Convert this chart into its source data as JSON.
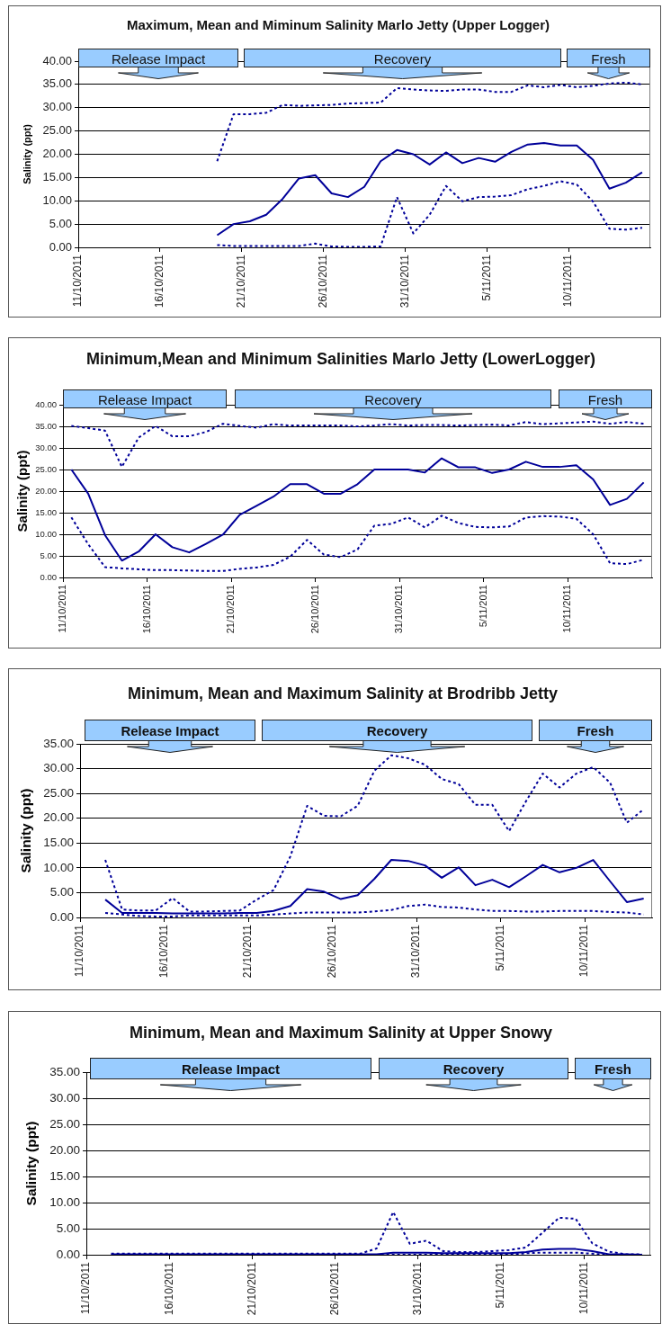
{
  "chart_data": [
    {
      "type": "line",
      "title": "Maximum, Mean and Miminum Salinity Marlo Jetty (Upper Logger)",
      "ylabel": "Salinity (ppt)",
      "x": [
        "2011-10-19T12:00",
        "2011-10-20T12:00",
        "2011-10-21T12:00",
        "2011-10-22T12:00",
        "2011-10-23T12:00",
        "2011-10-24T12:00",
        "2011-10-25T12:00",
        "2011-10-26T12:00",
        "2011-10-27T12:00",
        "2011-10-28T12:00",
        "2011-10-29T12:00",
        "2011-10-30T12:00",
        "2011-10-31T12:00",
        "2011-11-01T12:00",
        "2011-11-02T12:00",
        "2011-11-03T12:00",
        "2011-11-04T12:00",
        "2011-11-05T12:00",
        "2011-11-06T12:00",
        "2011-11-07T12:00",
        "2011-11-08T12:00",
        "2011-11-09T12:00",
        "2011-11-10T12:00",
        "2011-11-11T12:00",
        "2011-11-12T12:00",
        "2011-11-13T12:00",
        "2011-11-14T12:00"
      ],
      "series": [
        {
          "color": "#000099",
          "line_style": "dotted",
          "values": [
            18.5,
            28.6,
            28.6,
            28.9,
            30.6,
            30.4,
            30.5,
            30.6,
            30.9,
            31.0,
            31.1,
            34.2,
            33.9,
            33.7,
            33.6,
            33.9,
            33.9,
            33.4,
            33.4,
            34.8,
            34.4,
            34.9,
            34.4,
            34.7,
            35.2,
            35.4,
            35.0
          ]
        },
        {
          "color": "#000099",
          "line_style": "solid",
          "values": [
            2.6,
            5.0,
            5.6,
            7.0,
            10.4,
            14.8,
            15.5,
            11.6,
            10.8,
            13.0,
            18.5,
            20.9,
            20.0,
            17.8,
            20.4,
            18.1,
            19.2,
            18.4,
            20.5,
            22.1,
            22.4,
            21.9,
            21.9,
            18.8,
            12.6,
            13.9,
            16.1
          ]
        },
        {
          "color": "#000099",
          "line_style": "dotted",
          "values": [
            0.5,
            0.3,
            0.3,
            0.3,
            0.3,
            0.3,
            0.8,
            0.2,
            0.1,
            0.1,
            0.2,
            10.8,
            3.0,
            7.0,
            13.2,
            9.9,
            10.8,
            10.9,
            11.2,
            12.5,
            13.2,
            14.2,
            13.5,
            9.8,
            4.0,
            3.8,
            4.2
          ]
        }
      ],
      "xlim": [
        "2011-10-11",
        "2011-11-15"
      ],
      "xticks": [
        {
          "value": "2011-10-11",
          "label": "11/10/2011"
        },
        {
          "value": "2011-10-16",
          "label": "16/10/2011"
        },
        {
          "value": "2011-10-21",
          "label": "21/10/2011"
        },
        {
          "value": "2011-10-26",
          "label": "26/10/2011"
        },
        {
          "value": "2011-10-31",
          "label": "31/10/2011"
        },
        {
          "value": "2011-11-05",
          "label": "5/11/2011"
        },
        {
          "value": "2011-11-10",
          "label": "10/11/2011"
        }
      ],
      "ylim": [
        0,
        40
      ],
      "yticks": [
        {
          "value": 0,
          "label": "0.00"
        },
        {
          "value": 5,
          "label": "5.00"
        },
        {
          "value": 10,
          "label": "10.00"
        },
        {
          "value": 15,
          "label": "15.00"
        },
        {
          "value": 20,
          "label": "20.00"
        },
        {
          "value": 25,
          "label": "25.00"
        },
        {
          "value": 30,
          "label": "30.00"
        },
        {
          "value": 35,
          "label": "35.00"
        },
        {
          "value": 40,
          "label": "40.00"
        }
      ],
      "grid": "y",
      "annotations": [
        "Release Impact",
        "Recovery",
        "Fresh"
      ]
    },
    {
      "type": "line",
      "title": "Minimum,Mean and Minimum Salinities Marlo Jetty (LowerLogger)",
      "ylabel": "Salinity (ppt)",
      "x": [
        "2011-10-11T12:00",
        "2011-10-12T12:00",
        "2011-10-13T12:00",
        "2011-10-14T12:00",
        "2011-10-15T12:00",
        "2011-10-16T12:00",
        "2011-10-17T12:00",
        "2011-10-18T12:00",
        "2011-10-19T12:00",
        "2011-10-20T12:00",
        "2011-10-21T12:00",
        "2011-10-22T12:00",
        "2011-10-23T12:00",
        "2011-10-24T12:00",
        "2011-10-25T12:00",
        "2011-10-26T12:00",
        "2011-10-27T12:00",
        "2011-10-28T12:00",
        "2011-10-29T12:00",
        "2011-10-30T12:00",
        "2011-10-31T12:00",
        "2011-11-01T12:00",
        "2011-11-02T12:00",
        "2011-11-03T12:00",
        "2011-11-04T12:00",
        "2011-11-05T12:00",
        "2011-11-06T12:00",
        "2011-11-07T12:00",
        "2011-11-08T12:00",
        "2011-11-09T12:00",
        "2011-11-10T12:00",
        "2011-11-11T12:00",
        "2011-11-12T12:00",
        "2011-11-13T12:00",
        "2011-11-14T12:00"
      ],
      "series": [
        {
          "color": "#000099",
          "line_style": "dotted",
          "values": [
            35.1,
            34.6,
            34.0,
            25.6,
            32.4,
            35.1,
            32.7,
            32.7,
            33.7,
            35.6,
            35.1,
            34.7,
            35.5,
            35.2,
            35.2,
            35.2,
            35.2,
            35.0,
            35.2,
            35.5,
            35.2,
            35.3,
            35.3,
            35.2,
            35.3,
            35.4,
            35.2,
            36.0,
            35.5,
            35.7,
            35.9,
            36.1,
            35.6,
            36.0,
            35.6
          ]
        },
        {
          "color": "#000099",
          "line_style": "solid",
          "values": [
            25.0,
            19.4,
            9.8,
            3.9,
            6.0,
            10.0,
            7.0,
            5.8,
            7.8,
            9.9,
            14.5,
            16.6,
            18.7,
            21.6,
            21.6,
            19.4,
            19.4,
            21.6,
            25.0,
            25.0,
            25.0,
            24.3,
            27.6,
            25.5,
            25.5,
            24.2,
            25.0,
            26.8,
            25.6,
            25.6,
            26.0,
            22.7,
            16.8,
            18.2,
            22.0
          ]
        },
        {
          "color": "#000099",
          "line_style": "dotted",
          "values": [
            13.9,
            7.7,
            2.4,
            2.1,
            1.9,
            1.7,
            1.7,
            1.6,
            1.5,
            1.5,
            2.0,
            2.3,
            2.9,
            4.8,
            8.7,
            5.3,
            4.7,
            6.5,
            12.0,
            12.4,
            13.9,
            11.6,
            14.3,
            12.6,
            11.7,
            11.6,
            11.8,
            13.9,
            14.2,
            14.1,
            13.6,
            10.0,
            3.3,
            3.1,
            4.1
          ]
        }
      ],
      "xlim": [
        "2011-10-11",
        "2011-11-15"
      ],
      "xticks": [
        {
          "value": "2011-10-11",
          "label": "11/10/2011"
        },
        {
          "value": "2011-10-16",
          "label": "16/10/2011"
        },
        {
          "value": "2011-10-21",
          "label": "21/10/2011"
        },
        {
          "value": "2011-10-26",
          "label": "26/10/2011"
        },
        {
          "value": "2011-10-31",
          "label": "31/10/2011"
        },
        {
          "value": "2011-11-05",
          "label": "5/11/2011"
        },
        {
          "value": "2011-11-10",
          "label": "10/11/2011"
        }
      ],
      "ylim": [
        0,
        40
      ],
      "yticks": [
        {
          "value": 0,
          "label": "0.00"
        },
        {
          "value": 5,
          "label": "5.00"
        },
        {
          "value": 10,
          "label": "10.00"
        },
        {
          "value": 15,
          "label": "15.00"
        },
        {
          "value": 20,
          "label": "20.00"
        },
        {
          "value": 25,
          "label": "25.00"
        },
        {
          "value": 30,
          "label": "30.00"
        },
        {
          "value": 35,
          "label": "35.00"
        },
        {
          "value": 40,
          "label": "40.00"
        }
      ],
      "grid": "y",
      "annotations": [
        "Release Impact",
        "Recovery",
        "Fresh"
      ]
    },
    {
      "type": "line",
      "title": "Minimum, Mean and Maximum Salinity at Brodribb Jetty",
      "ylabel": "Salinity (ppt)",
      "x": [
        "2011-10-12T12:00",
        "2011-10-13T12:00",
        "2011-10-14T12:00",
        "2011-10-15T12:00",
        "2011-10-16T12:00",
        "2011-10-17T12:00",
        "2011-10-18T12:00",
        "2011-10-19T12:00",
        "2011-10-20T12:00",
        "2011-10-21T12:00",
        "2011-10-22T12:00",
        "2011-10-23T12:00",
        "2011-10-24T12:00",
        "2011-10-25T12:00",
        "2011-10-26T12:00",
        "2011-10-27T12:00",
        "2011-10-28T12:00",
        "2011-10-29T12:00",
        "2011-10-30T12:00",
        "2011-10-31T12:00",
        "2011-11-01T12:00",
        "2011-11-02T12:00",
        "2011-11-03T12:00",
        "2011-11-04T12:00",
        "2011-11-05T12:00",
        "2011-11-06T12:00",
        "2011-11-07T12:00",
        "2011-11-08T12:00",
        "2011-11-09T12:00",
        "2011-11-10T12:00",
        "2011-11-11T12:00",
        "2011-11-12T12:00",
        "2011-11-13T12:00"
      ],
      "series": [
        {
          "color": "#000099",
          "line_style": "dotted",
          "values": [
            11.6,
            1.6,
            1.4,
            1.4,
            3.9,
            1.2,
            1.2,
            1.3,
            1.4,
            3.6,
            5.5,
            12.3,
            22.5,
            20.5,
            20.4,
            22.5,
            29.6,
            32.7,
            32.1,
            30.8,
            27.9,
            26.9,
            22.7,
            22.7,
            17.4,
            23.4,
            29.0,
            26.2,
            29.0,
            30.3,
            27.2,
            19.1,
            21.8
          ]
        },
        {
          "color": "#000099",
          "line_style": "solid",
          "values": [
            3.6,
            0.9,
            0.9,
            0.9,
            0.8,
            0.8,
            0.8,
            0.8,
            0.9,
            0.9,
            1.3,
            2.3,
            5.7,
            5.2,
            3.7,
            4.5,
            7.8,
            11.6,
            11.4,
            10.5,
            8.0,
            10.1,
            6.5,
            7.6,
            6.1,
            8.3,
            10.6,
            9.1,
            10.0,
            11.6,
            7.3,
            3.1,
            3.8
          ]
        },
        {
          "color": "#000099",
          "line_style": "dotted",
          "values": [
            0.9,
            0.6,
            0.3,
            0.2,
            0.2,
            0.4,
            0.4,
            0.4,
            0.4,
            0.4,
            0.6,
            0.8,
            1.0,
            1.0,
            1.0,
            1.0,
            1.2,
            1.5,
            2.3,
            2.6,
            2.1,
            2.0,
            1.6,
            1.3,
            1.3,
            1.2,
            1.2,
            1.3,
            1.3,
            1.3,
            1.1,
            1.0,
            0.6
          ]
        }
      ],
      "xlim": [
        "2011-10-11",
        "2011-11-14"
      ],
      "xticks": [
        {
          "value": "2011-10-11",
          "label": "11/10/2011"
        },
        {
          "value": "2011-10-16",
          "label": "16/10/2011"
        },
        {
          "value": "2011-10-21",
          "label": "21/10/2011"
        },
        {
          "value": "2011-10-26",
          "label": "26/10/2011"
        },
        {
          "value": "2011-10-31",
          "label": "31/10/2011"
        },
        {
          "value": "2011-11-05",
          "label": "5/11/2011"
        },
        {
          "value": "2011-11-10",
          "label": "10/11/2011"
        }
      ],
      "ylim": [
        0,
        35
      ],
      "yticks": [
        {
          "value": 0,
          "label": "0.00"
        },
        {
          "value": 5,
          "label": "5.00"
        },
        {
          "value": 10,
          "label": "10.00"
        },
        {
          "value": 15,
          "label": "15.00"
        },
        {
          "value": 20,
          "label": "20.00"
        },
        {
          "value": 25,
          "label": "25.00"
        },
        {
          "value": 30,
          "label": "30.00"
        },
        {
          "value": 35,
          "label": "35.00"
        }
      ],
      "grid": "y",
      "annotations": [
        "Release Impact",
        "Recovery",
        "Fresh"
      ]
    },
    {
      "type": "line",
      "title": "Minimum, Mean and Maximum Salinity at Upper Snowy",
      "ylabel": "Salinity (ppt)",
      "x": [
        "2011-10-12T12:00",
        "2011-10-13T12:00",
        "2011-10-14T12:00",
        "2011-10-15T12:00",
        "2011-10-16T12:00",
        "2011-10-17T12:00",
        "2011-10-18T12:00",
        "2011-10-19T12:00",
        "2011-10-20T12:00",
        "2011-10-21T12:00",
        "2011-10-22T12:00",
        "2011-10-23T12:00",
        "2011-10-24T12:00",
        "2011-10-25T12:00",
        "2011-10-26T12:00",
        "2011-10-27T12:00",
        "2011-10-28T12:00",
        "2011-10-29T12:00",
        "2011-10-30T12:00",
        "2011-10-31T12:00",
        "2011-11-01T12:00",
        "2011-11-02T12:00",
        "2011-11-03T12:00",
        "2011-11-04T12:00",
        "2011-11-05T12:00",
        "2011-11-06T12:00",
        "2011-11-07T12:00",
        "2011-11-08T12:00",
        "2011-11-09T12:00",
        "2011-11-10T12:00",
        "2011-11-11T12:00",
        "2011-11-12T12:00",
        "2011-11-13T12:00"
      ],
      "series": [
        {
          "color": "#000099",
          "line_style": "dotted",
          "values": [
            0.2,
            0.2,
            0.2,
            0.2,
            0.2,
            0.2,
            0.2,
            0.2,
            0.2,
            0.2,
            0.2,
            0.2,
            0.2,
            0.2,
            0.2,
            0.2,
            1.2,
            8.2,
            2.1,
            2.7,
            0.7,
            0.5,
            0.5,
            0.7,
            0.9,
            1.4,
            4.2,
            7.1,
            6.9,
            2.2,
            0.6,
            0.1,
            0.1
          ]
        },
        {
          "color": "#000099",
          "line_style": "solid",
          "values": [
            0.1,
            0.1,
            0.1,
            0.1,
            0.1,
            0.1,
            0.1,
            0.1,
            0.1,
            0.1,
            0.1,
            0.1,
            0.1,
            0.1,
            0.1,
            0.1,
            0.1,
            0.4,
            0.4,
            0.4,
            0.3,
            0.3,
            0.3,
            0.3,
            0.3,
            0.5,
            1.0,
            1.1,
            1.1,
            0.7,
            0.1,
            0.1,
            0.0
          ]
        },
        {
          "color": "#000099",
          "line_style": "dotted",
          "values": [
            0.0,
            0.0,
            0.0,
            0.0,
            0.0,
            0.0,
            0.0,
            0.0,
            0.0,
            0.0,
            0.0,
            0.0,
            0.0,
            0.0,
            0.0,
            0.0,
            0.0,
            0.0,
            0.0,
            0.0,
            0.0,
            0.0,
            0.0,
            0.0,
            0.0,
            0.3,
            0.4,
            0.4,
            0.4,
            0.2,
            0.0,
            0.0,
            0.0
          ]
        }
      ],
      "xlim": [
        "2011-10-11",
        "2011-11-14"
      ],
      "xticks": [
        {
          "value": "2011-10-11",
          "label": "11/10/2011"
        },
        {
          "value": "2011-10-16",
          "label": "16/10/2011"
        },
        {
          "value": "2011-10-21",
          "label": "21/10/2011"
        },
        {
          "value": "2011-10-26",
          "label": "26/10/2011"
        },
        {
          "value": "2011-10-31",
          "label": "31/10/2011"
        },
        {
          "value": "2011-11-05",
          "label": "5/11/2011"
        },
        {
          "value": "2011-11-10",
          "label": "10/11/2011"
        }
      ],
      "ylim": [
        0,
        35
      ],
      "yticks": [
        {
          "value": 0,
          "label": "0.00"
        },
        {
          "value": 5,
          "label": "5.00"
        },
        {
          "value": 10,
          "label": "10.00"
        },
        {
          "value": 15,
          "label": "15.00"
        },
        {
          "value": 20,
          "label": "20.00"
        },
        {
          "value": 25,
          "label": "25.00"
        },
        {
          "value": 30,
          "label": "30.00"
        },
        {
          "value": 35,
          "label": "35.00"
        }
      ],
      "grid": "y",
      "annotations": [
        "Release Impact",
        "Recovery",
        "Fresh"
      ]
    }
  ]
}
